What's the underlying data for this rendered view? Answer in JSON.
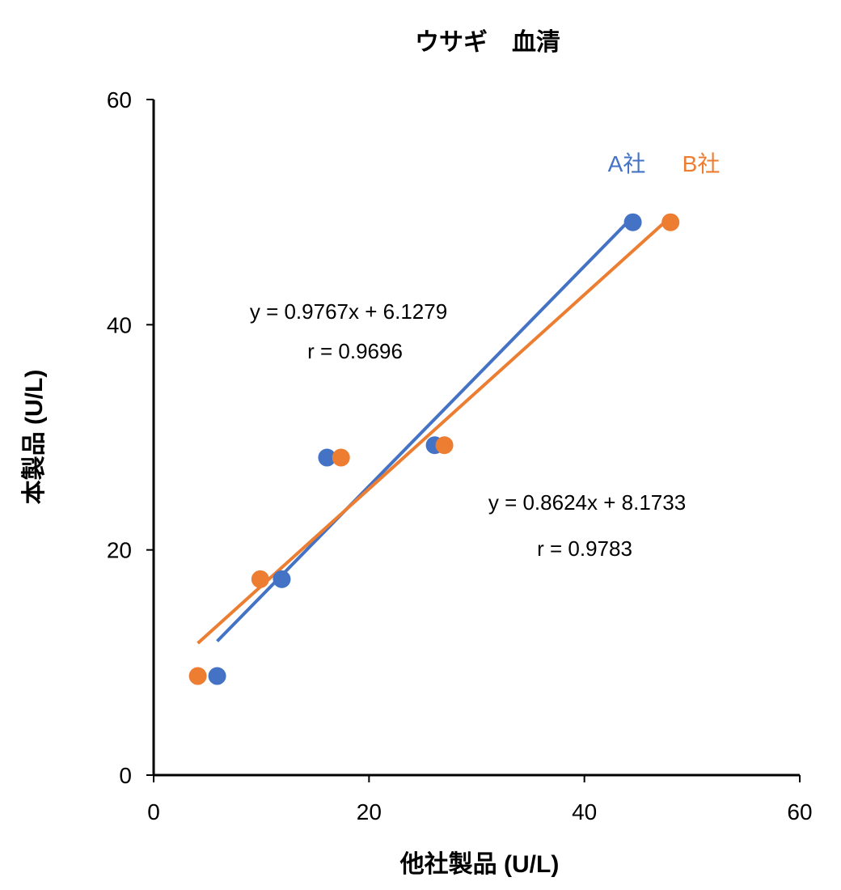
{
  "chart_data": {
    "type": "scatter",
    "title": "ウサギ　血清",
    "xlabel": "他社製品 (U/L)",
    "ylabel": "本製品 (U/L)",
    "xlim": [
      0,
      60
    ],
    "ylim": [
      0,
      60
    ],
    "xticks": [
      "0",
      "20",
      "40",
      "60"
    ],
    "yticks": [
      "0",
      "20",
      "40",
      "60"
    ],
    "grid": false,
    "legend_placement": "top-right",
    "series": [
      {
        "name": "A社",
        "color": "#4472C4",
        "x": [
          5.9,
          11.9,
          16.1,
          26.1,
          44.5
        ],
        "y": [
          8.8,
          17.4,
          28.2,
          29.3,
          49.1
        ],
        "trendline": {
          "slope": 0.9767,
          "intercept": 6.1279,
          "equation": "y = 0.9767x + 6.1279",
          "r": "r = 0.9696"
        }
      },
      {
        "name": "B社",
        "color": "#ED7D31",
        "x": [
          4.1,
          9.9,
          17.4,
          27.0,
          48.0
        ],
        "y": [
          8.8,
          17.4,
          28.2,
          29.3,
          49.1
        ],
        "trendline": {
          "slope": 0.8624,
          "intercept": 8.1733,
          "equation": "y = 0.8624x + 8.1733",
          "r": "r = 0.9783"
        }
      }
    ]
  }
}
